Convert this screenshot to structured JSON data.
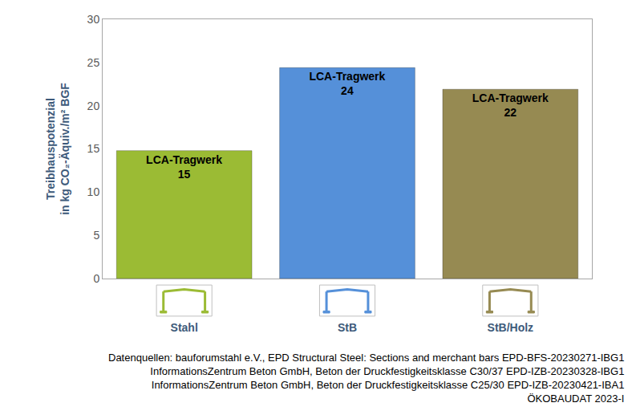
{
  "chart_data": {
    "type": "bar",
    "y_label": "Treibhauspotenzial\nin kg CO₂-Äquiv./m² BGF",
    "categories": [
      "Stahl",
      "StB",
      "StB/Holz"
    ],
    "values": [
      14.8,
      24.4,
      21.9
    ],
    "value_labels": [
      "15",
      "24",
      "22"
    ],
    "annotation": "LCA-Tragwerk",
    "data_labels": true,
    "colors": [
      "#9bbb34",
      "#5590d9",
      "#968a52"
    ],
    "ylim": [
      0,
      30
    ],
    "yticks": [
      0,
      5,
      10,
      15,
      20,
      25,
      30
    ],
    "grid": false,
    "source": [
      "Datenquellen: bauforumstahl e.V., EPD Structural Steel: Sections and merchant bars EPD-BFS-20230271-IBG1",
      "InformationsZentrum Beton GmbH, Beton der Druckfestigkeitsklasse C30/37 EPD-IZB-20230328-IBG1",
      "InformationsZentrum Beton GmbH, Beton der Druckfestigkeitsklasse C25/30 EPD-IZB-20230421-IBA1",
      "ÖKOBAUDAT 2023-I"
    ]
  }
}
